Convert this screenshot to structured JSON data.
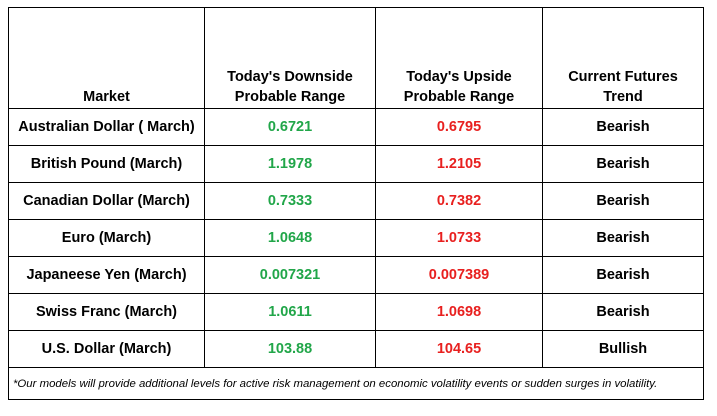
{
  "table": {
    "headers": {
      "market": "Market",
      "downside_line1": "Today's Downside",
      "downside_line2": "Probable Range",
      "upside_line1": "Today's Upside",
      "upside_line2": "Probable Range",
      "trend_line1": "Current Futures",
      "trend_line2": "Trend"
    },
    "rows": [
      {
        "market": "Australian Dollar ( March)",
        "downside": "0.6721",
        "upside": "0.6795",
        "trend": "Bearish"
      },
      {
        "market": "British Pound (March)",
        "downside": "1.1978",
        "upside": "1.2105",
        "trend": "Bearish"
      },
      {
        "market": "Canadian Dollar (March)",
        "downside": "0.7333",
        "upside": "0.7382",
        "trend": "Bearish"
      },
      {
        "market": "Euro (March)",
        "downside": "1.0648",
        "upside": "1.0733",
        "trend": "Bearish"
      },
      {
        "market": "Japaneese Yen (March)",
        "downside": "0.007321",
        "upside": "0.007389",
        "trend": "Bearish"
      },
      {
        "market": "Swiss Franc (March)",
        "downside": "1.0611",
        "upside": "1.0698",
        "trend": "Bearish"
      },
      {
        "market": "U.S. Dollar (March)",
        "downside": "103.88",
        "upside": "104.65",
        "trend": "Bullish"
      }
    ],
    "footnote": "*Our models will provide additional levels for active risk management on economic volatility events or sudden surges in volatility."
  },
  "colors": {
    "downside": "#21a649",
    "upside": "#e8201f"
  }
}
